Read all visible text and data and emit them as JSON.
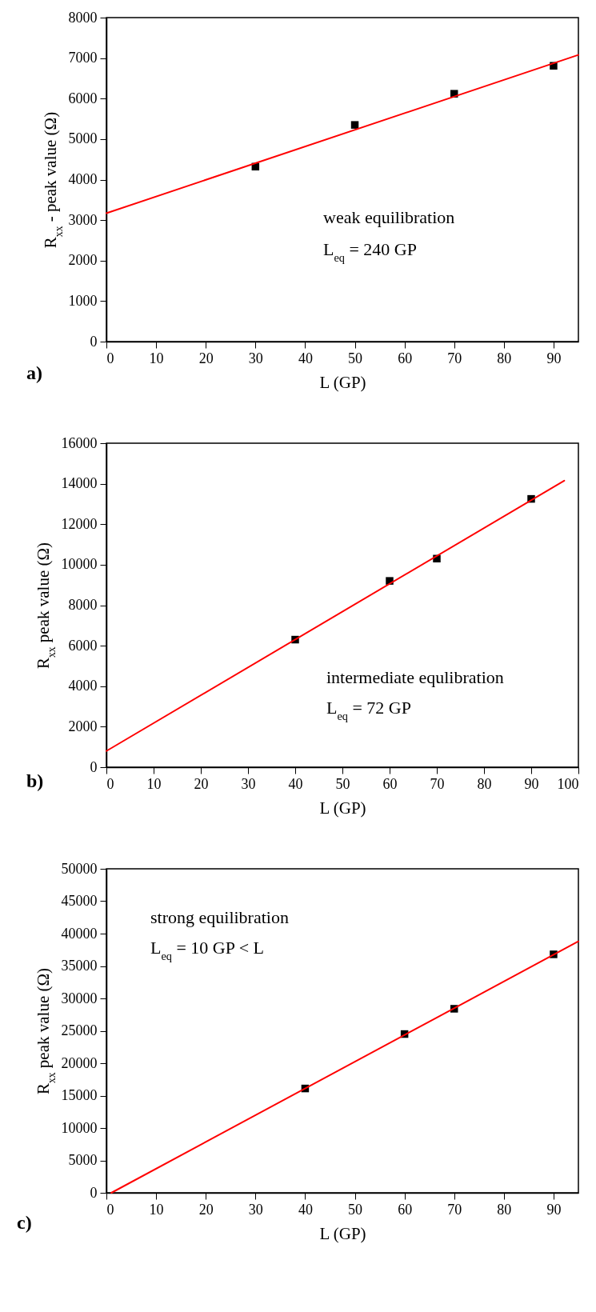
{
  "chart_data": [
    {
      "type": "scatter",
      "xlabel": "L (GP)",
      "ylabel": "R$_{xx}$ - peak value (Ω)",
      "xlim": [
        0,
        95
      ],
      "xticks": [
        0,
        10,
        20,
        30,
        40,
        50,
        60,
        70,
        80,
        90
      ],
      "ylim": [
        0,
        8000
      ],
      "yticks": [
        0,
        1000,
        2000,
        3000,
        4000,
        5000,
        6000,
        7000,
        8000
      ],
      "annotations": [
        "a)",
        "weak equilibration",
        "L$_{eq}$ = 240 GP"
      ],
      "series": [
        {
          "color": "#000000",
          "marker": "square",
          "x": [
            30,
            50,
            70,
            90
          ],
          "values": [
            4320,
            5350,
            6120,
            6810
          ]
        },
        {
          "type": "line",
          "color": "#ff0000",
          "marker": "none",
          "x": [
            0,
            95
          ],
          "values": [
            3170,
            7080
          ]
        }
      ]
    },
    {
      "type": "scatter",
      "xlabel": "L (GP)",
      "ylabel": "R$_{xx}$ peak value (Ω)",
      "xlim": [
        0,
        100
      ],
      "xticks": [
        0,
        10,
        20,
        30,
        40,
        50,
        60,
        70,
        80,
        90,
        100
      ],
      "ylim": [
        0,
        16000
      ],
      "yticks": [
        0,
        2000,
        4000,
        6000,
        8000,
        10000,
        12000,
        14000,
        16000
      ],
      "annotations": [
        "b)",
        "intermediate equlibration",
        "L$_{eq}$ = 72 GP"
      ],
      "series": [
        {
          "color": "#000000",
          "marker": "square",
          "x": [
            40,
            60,
            70,
            90
          ],
          "values": [
            6300,
            9200,
            10300,
            13250
          ]
        },
        {
          "type": "line",
          "color": "#ff0000",
          "marker": "none",
          "x": [
            0,
            97
          ],
          "values": [
            800,
            14150
          ]
        }
      ]
    },
    {
      "type": "scatter",
      "xlabel": "L (GP)",
      "ylabel": "R$_{xx}$ peak value (Ω)",
      "xlim": [
        0,
        95
      ],
      "xticks": [
        0,
        10,
        20,
        30,
        40,
        50,
        60,
        70,
        80,
        90
      ],
      "ylim": [
        0,
        50000
      ],
      "yticks": [
        0,
        5000,
        10000,
        15000,
        20000,
        25000,
        30000,
        35000,
        40000,
        45000,
        50000
      ],
      "annotations": [
        "c)",
        "strong equilibration",
        "L$_{eq}$ = 10 GP  < L"
      ],
      "series": [
        {
          "color": "#000000",
          "marker": "square",
          "x": [
            40,
            60,
            70,
            90
          ],
          "values": [
            16100,
            24500,
            28400,
            36800
          ]
        },
        {
          "type": "line",
          "color": "#ff0000",
          "marker": "none",
          "x": [
            1,
            95
          ],
          "values": [
            0,
            38800
          ]
        }
      ]
    }
  ]
}
